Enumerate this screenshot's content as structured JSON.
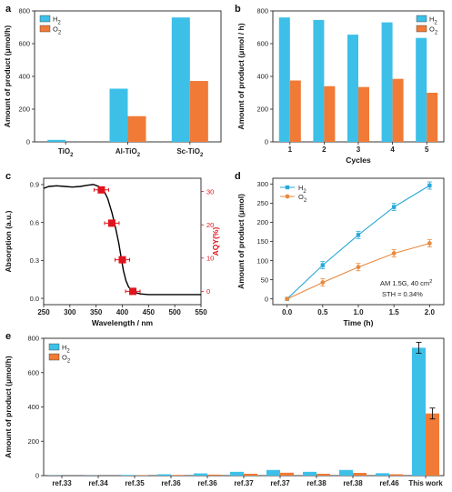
{
  "colors": {
    "h2_bar": "#3cc0e8",
    "o2_bar": "#f07a36",
    "line_h2": "#2aa8d8",
    "line_o2": "#e88a40",
    "aqy": "#e0141e",
    "absorption": "#000000"
  },
  "chart_data": [
    {
      "panel": "a",
      "type": "bar",
      "categories": [
        "TiO2",
        "Al-TiO2",
        "Sc-TiO2"
      ],
      "series": [
        {
          "name": "H2",
          "values": [
            12,
            325,
            760
          ]
        },
        {
          "name": "O2",
          "values": [
            0,
            157,
            372
          ]
        }
      ],
      "ylabel": "Amount of product (μmol/h)",
      "ylim": [
        0,
        800
      ],
      "yticks": [
        0,
        200,
        400,
        600,
        800
      ],
      "legend": "top-left"
    },
    {
      "panel": "b",
      "type": "bar",
      "categories": [
        "1",
        "2",
        "3",
        "4",
        "5"
      ],
      "series": [
        {
          "name": "H2",
          "values": [
            760,
            745,
            655,
            730,
            635
          ]
        },
        {
          "name": "O2",
          "values": [
            375,
            340,
            335,
            385,
            300
          ]
        }
      ],
      "xlabel": "Cycles",
      "ylabel": "Amount of product (μmol / h)",
      "ylim": [
        0,
        800
      ],
      "yticks": [
        0,
        200,
        400,
        600,
        800
      ],
      "legend": "top-right"
    },
    {
      "panel": "c",
      "type": "line",
      "xlabel": "Wavelength / nm",
      "ylabel": "Absorption (a.u.)",
      "y2label": "AQY(%)",
      "xlim": [
        250,
        550
      ],
      "xticks": [
        250,
        300,
        350,
        400,
        450,
        500,
        550
      ],
      "ylim": [
        -0.05,
        0.95
      ],
      "yticks": [
        0.0,
        0.3,
        0.6,
        0.9
      ],
      "y2lim": [
        -4,
        34
      ],
      "y2ticks": [
        0,
        10,
        20,
        30
      ],
      "absorption": {
        "x": [
          250,
          260,
          275,
          290,
          305,
          320,
          335,
          345,
          355,
          365,
          372,
          380,
          387,
          393,
          398,
          402,
          407,
          412,
          418,
          425,
          435,
          450,
          500,
          550
        ],
        "y": [
          0.87,
          0.885,
          0.89,
          0.885,
          0.88,
          0.885,
          0.895,
          0.9,
          0.885,
          0.85,
          0.79,
          0.68,
          0.56,
          0.44,
          0.32,
          0.22,
          0.14,
          0.09,
          0.06,
          0.045,
          0.035,
          0.03,
          0.03,
          0.03
        ]
      },
      "aqy": {
        "x": [
          360,
          380,
          400,
          420
        ],
        "y": [
          30.5,
          20.5,
          9.5,
          0
        ]
      }
    },
    {
      "panel": "d",
      "type": "line",
      "x": [
        0.0,
        0.5,
        1.0,
        1.5,
        2.0
      ],
      "series": [
        {
          "name": "H2",
          "values": [
            0,
            88,
            167,
            240,
            296
          ]
        },
        {
          "name": "O2",
          "values": [
            0,
            43,
            83,
            119,
            145
          ]
        }
      ],
      "xlabel": "Time (h)",
      "ylabel": "Amount of product (μmol)",
      "xlim": [
        -0.2,
        2.2
      ],
      "xticks": [
        0.0,
        0.5,
        1.0,
        1.5,
        2.0
      ],
      "ylim": [
        -15,
        315
      ],
      "yticks": [
        0,
        50,
        100,
        150,
        200,
        250,
        300
      ],
      "legend": "top-left",
      "annotations": [
        "AM 1.5G, 40 cm²",
        "STH = 0.34%"
      ]
    },
    {
      "panel": "e",
      "type": "bar",
      "categories": [
        "ref.33",
        "ref.34",
        "ref.35",
        "ref.36",
        "ref.36",
        "ref.37",
        "ref.37",
        "ref.38",
        "ref.38",
        "ref.46",
        "This work"
      ],
      "series": [
        {
          "name": "H2",
          "values": [
            1,
            1,
            4,
            8,
            13,
            22,
            33,
            22,
            33,
            14,
            745
          ]
        },
        {
          "name": "O2",
          "values": [
            0,
            0,
            2,
            4,
            6,
            11,
            17,
            11,
            16,
            8,
            362
          ]
        }
      ],
      "ylabel": "Amount of product (μmol/h)",
      "ylim": [
        0,
        800
      ],
      "yticks": [
        0,
        200,
        400,
        600,
        800
      ],
      "legend": "top-left"
    }
  ],
  "text": {
    "panel_labels": [
      "a",
      "b",
      "c",
      "d",
      "e"
    ],
    "legend_h2": "H",
    "legend_o2": "O",
    "subscript_2": "2",
    "a_ylabel": "Amount of product (μmol/h)",
    "b_ylabel": "Amount of product (μmol / h)",
    "b_xlabel": "Cycles",
    "c_ylabel": "Absorption (a.u.)",
    "c_y2label": "AQY(%)",
    "c_xlabel": "Wavelength / nm",
    "d_ylabel": "Amount of product (μmol)",
    "d_xlabel": "Time (h)",
    "d_ann1": "AM 1.5G, 40 cm",
    "d_ann1_sup": "2",
    "d_ann2": "STH = 0.34%",
    "e_ylabel": "Amount of product (μmol/h)"
  }
}
